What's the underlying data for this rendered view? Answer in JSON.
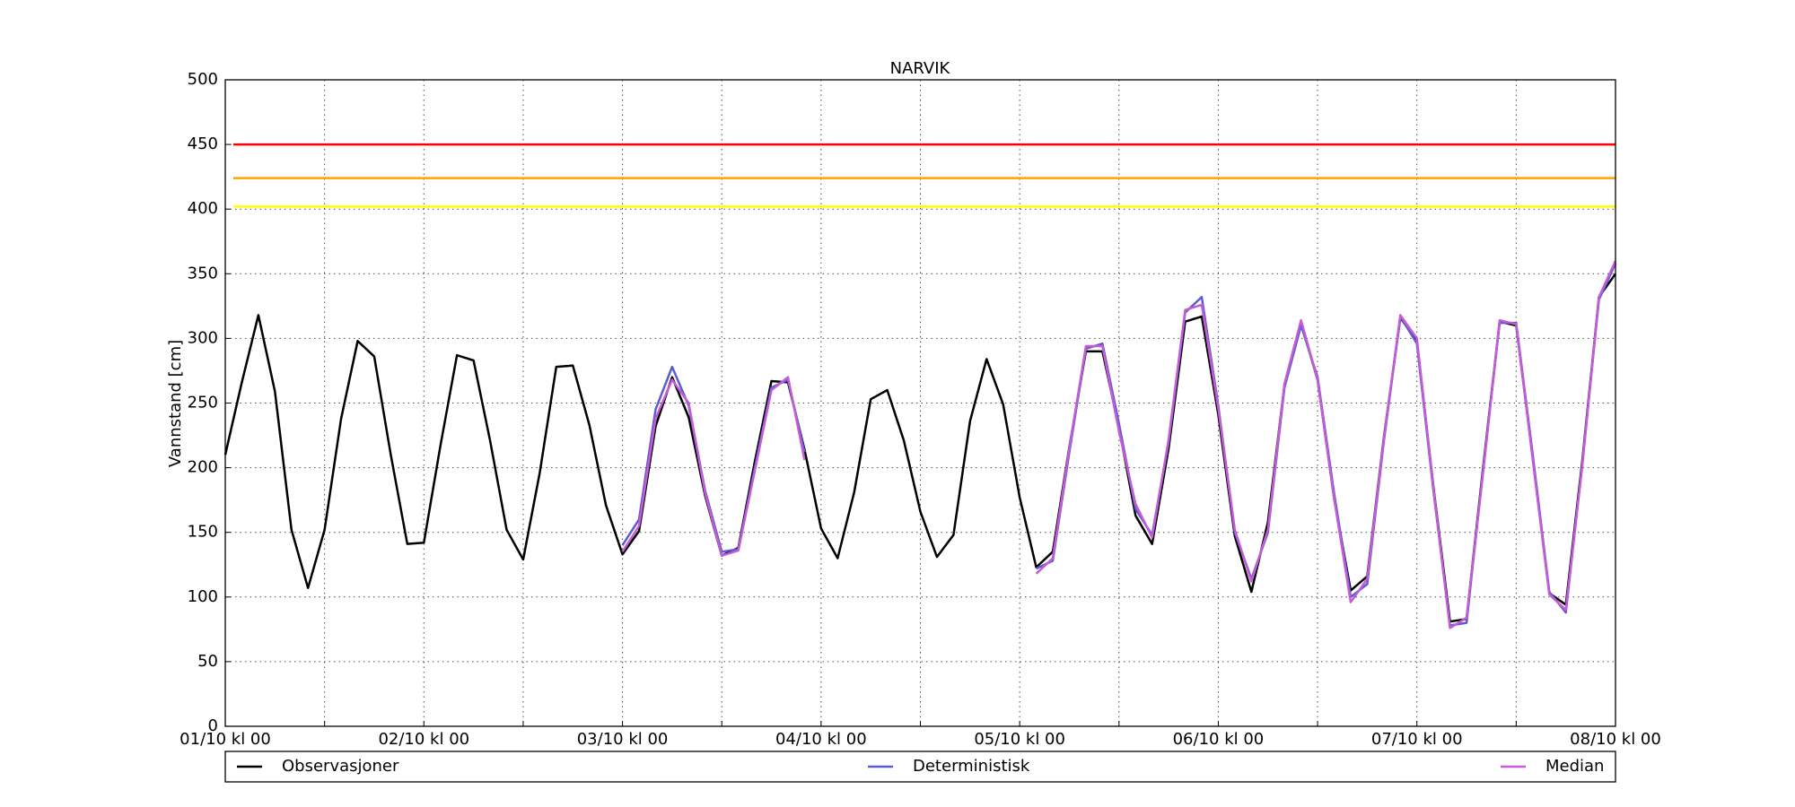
{
  "chart_data": {
    "type": "line",
    "title": "NARVIK",
    "y_label": "Vannstand [cm]",
    "x": [
      0,
      2,
      4,
      6,
      8,
      10,
      12,
      14,
      16,
      18,
      20,
      22,
      24,
      26,
      28,
      30,
      32,
      34,
      36,
      38,
      40,
      42,
      44,
      46,
      48,
      50,
      52,
      54,
      56,
      58,
      60,
      62,
      64,
      66,
      68,
      70,
      72,
      74,
      76,
      78,
      80,
      82,
      84,
      86,
      88,
      90,
      92,
      94,
      96,
      98,
      100,
      102,
      104,
      106,
      108,
      110,
      112,
      114,
      116,
      118,
      120,
      122,
      124,
      126,
      128,
      130,
      132,
      134,
      136,
      138,
      140,
      142,
      144,
      146,
      148,
      150,
      152,
      154,
      156,
      158,
      160,
      162,
      164,
      166,
      168
    ],
    "series": [
      {
        "name": "Observasjoner",
        "color": "#000000",
        "values": [
          210,
          266,
          318,
          259,
          152,
          107,
          152,
          238,
          298,
          286,
          210,
          141,
          142,
          217,
          287,
          283,
          221,
          152,
          129,
          196,
          278,
          279,
          233,
          171,
          133,
          151,
          232,
          270,
          239,
          178,
          132,
          138,
          205,
          267,
          266,
          214,
          153,
          130,
          181,
          253,
          260,
          221,
          166,
          131,
          148,
          236,
          284,
          249,
          177,
          123,
          135,
          216,
          290,
          290,
          231,
          163,
          141,
          215,
          313,
          317,
          241,
          147,
          104,
          158,
          264,
          312,
          268,
          176,
          105,
          116,
          223,
          316,
          298,
          185,
          81,
          83,
          200,
          313,
          310,
          208,
          103,
          94,
          206,
          332,
          350
        ]
      },
      {
        "name": "Deterministisk",
        "color": "#5b5bd6",
        "values": [
          null,
          null,
          null,
          null,
          null,
          null,
          null,
          null,
          null,
          null,
          null,
          null,
          null,
          null,
          null,
          null,
          null,
          null,
          null,
          null,
          null,
          null,
          null,
          null,
          140,
          160,
          245,
          278,
          248,
          182,
          135,
          137,
          200,
          262,
          268,
          212,
          null,
          null,
          null,
          null,
          null,
          null,
          null,
          null,
          null,
          null,
          null,
          null,
          null,
          122,
          128,
          212,
          292,
          296,
          234,
          168,
          148,
          220,
          320,
          332,
          248,
          150,
          114,
          150,
          262,
          310,
          270,
          180,
          100,
          110,
          220,
          317,
          296,
          182,
          78,
          80,
          198,
          312,
          312,
          210,
          104,
          88,
          204,
          330,
          358
        ]
      },
      {
        "name": "Median",
        "color": "#c65bd6",
        "values": [
          null,
          null,
          null,
          null,
          null,
          null,
          null,
          null,
          null,
          null,
          null,
          null,
          null,
          null,
          null,
          null,
          null,
          null,
          null,
          null,
          null,
          null,
          null,
          null,
          135,
          155,
          238,
          268,
          250,
          180,
          132,
          136,
          198,
          260,
          270,
          206,
          null,
          null,
          null,
          null,
          null,
          null,
          null,
          null,
          null,
          null,
          null,
          null,
          null,
          118,
          130,
          215,
          294,
          294,
          228,
          172,
          146,
          222,
          322,
          326,
          246,
          152,
          112,
          152,
          265,
          314,
          268,
          176,
          96,
          114,
          222,
          318,
          300,
          184,
          76,
          84,
          196,
          314,
          311,
          206,
          102,
          90,
          202,
          332,
          360
        ]
      }
    ],
    "hlines": [
      {
        "value": 450,
        "color": "#ff0000"
      },
      {
        "value": 424,
        "color": "#ffa500"
      },
      {
        "value": 402,
        "color": "#ffff00"
      }
    ],
    "xlim": [
      0,
      168
    ],
    "xticks": [
      {
        "value": 0,
        "label": "01/10 kl 00"
      },
      {
        "value": 24,
        "label": "02/10 kl 00"
      },
      {
        "value": 48,
        "label": "03/10 kl 00"
      },
      {
        "value": 72,
        "label": "04/10 kl 00"
      },
      {
        "value": 96,
        "label": "05/10 kl 00"
      },
      {
        "value": 120,
        "label": "06/10 kl 00"
      },
      {
        "value": 144,
        "label": "07/10 kl 00"
      },
      {
        "value": 168,
        "label": "08/10 kl 00"
      }
    ],
    "xminorticks": [
      12,
      36,
      60,
      84,
      108,
      132,
      156
    ],
    "ylim": [
      0,
      500
    ],
    "yticks": [
      0,
      50,
      100,
      150,
      200,
      250,
      300,
      350,
      400,
      450,
      500
    ],
    "grid": true,
    "legend": "bottom"
  }
}
